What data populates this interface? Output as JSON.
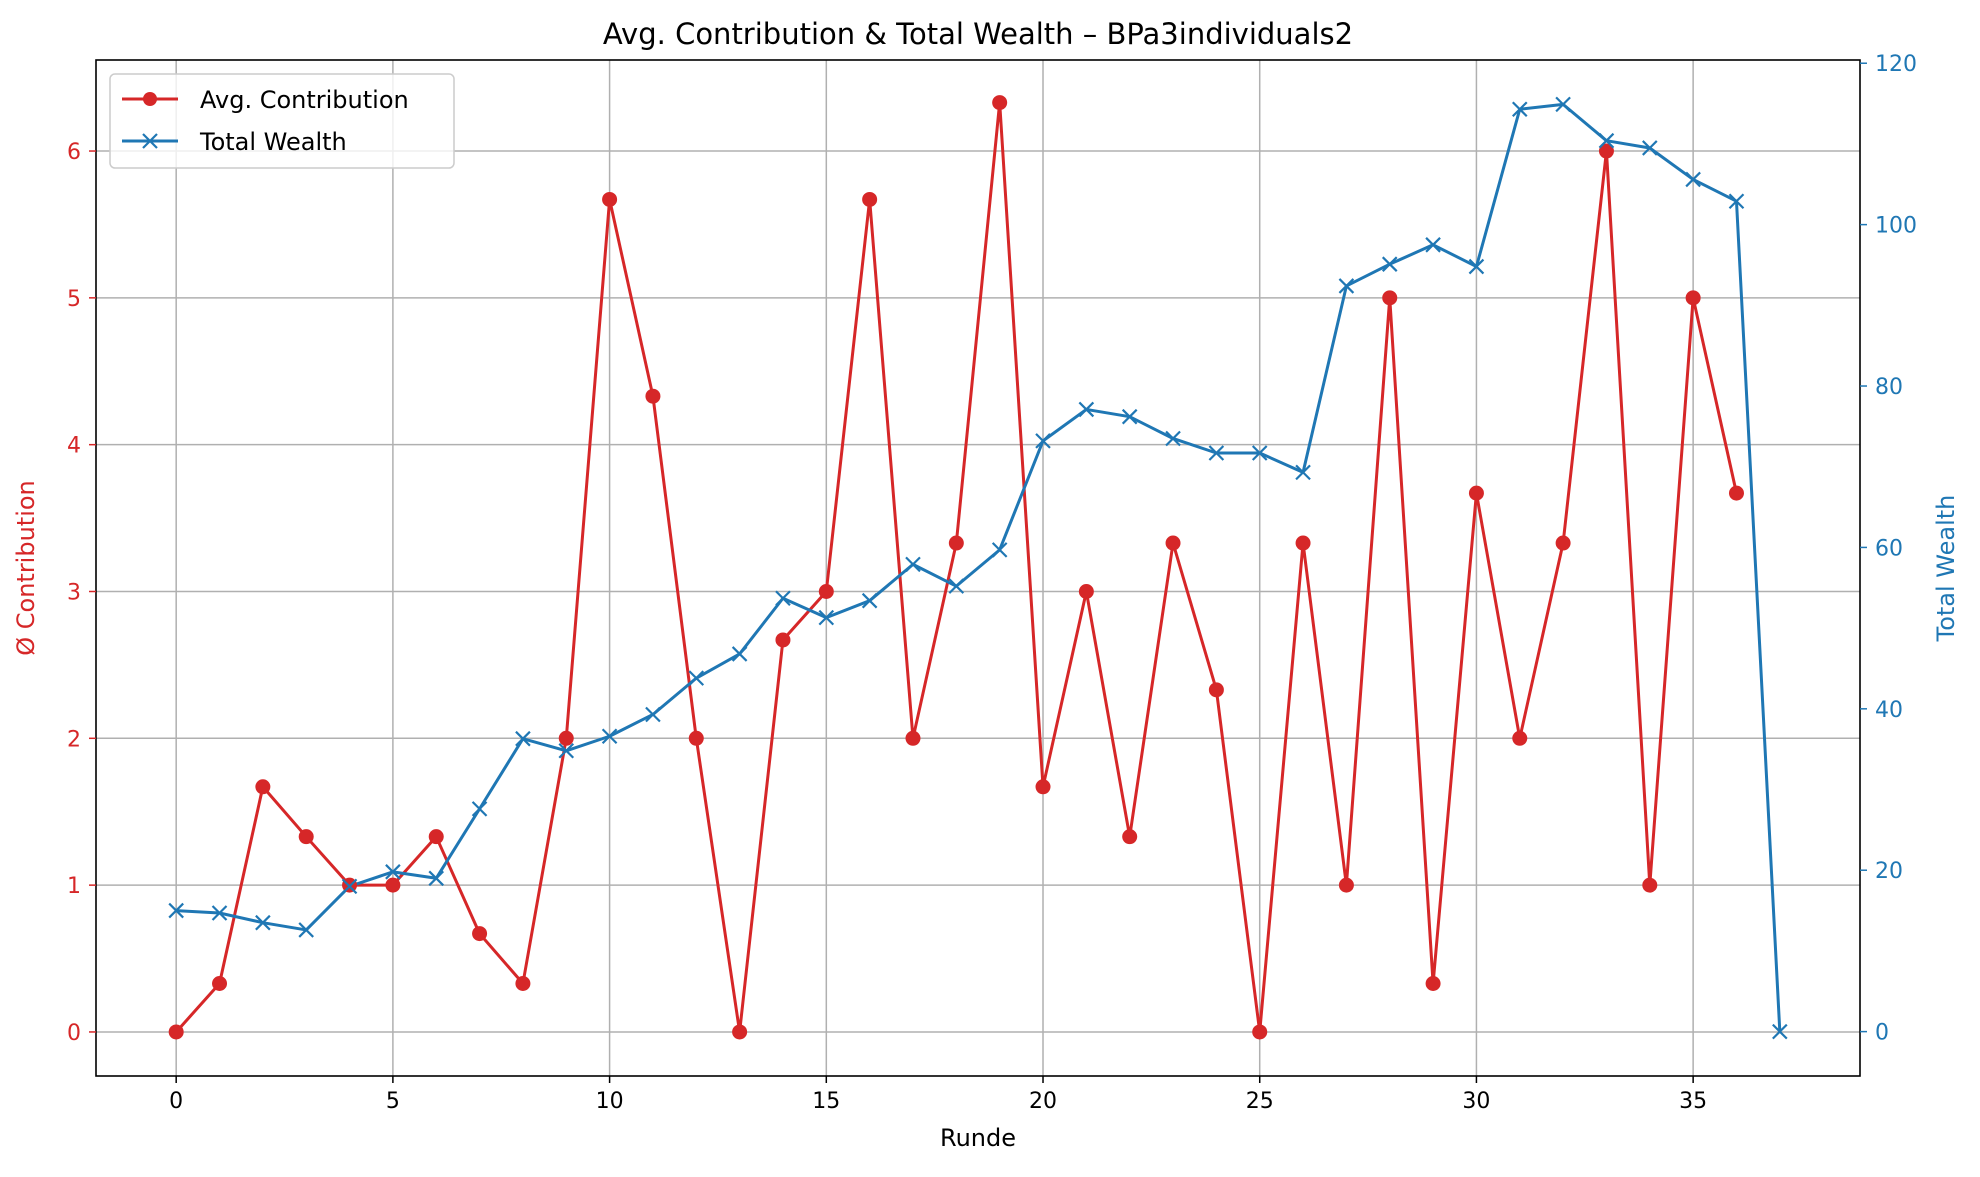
{
  "colors": {
    "contribution": "#d62728",
    "wealth": "#1f77b4",
    "grid": "#b0b0b0",
    "axis": "#000000"
  },
  "chart_data": {
    "type": "line",
    "title": "Avg. Contribution & Total Wealth – BPa3individuals2",
    "xlabel": "Runde",
    "ylabel_left": "Ø Contribution",
    "ylabel_right": "Total Wealth",
    "xlim": [
      -1.85,
      38.85
    ],
    "ylim_left": [
      -0.3,
      6.62
    ],
    "ylim_right": [
      -5.5,
      120.4
    ],
    "x_ticks": [
      0,
      5,
      10,
      15,
      20,
      25,
      30,
      35
    ],
    "y_left_ticks": [
      0,
      1,
      2,
      3,
      4,
      5,
      6
    ],
    "y_right_ticks": [
      0,
      20,
      40,
      60,
      80,
      100,
      120
    ],
    "grid": true,
    "legend_position": "top-left",
    "series": [
      {
        "name": "Avg. Contribution",
        "axis": "left",
        "marker": "circle",
        "x": [
          0,
          1,
          2,
          3,
          4,
          5,
          6,
          7,
          8,
          9,
          10,
          11,
          12,
          13,
          14,
          15,
          16,
          17,
          18,
          19,
          20,
          21,
          22,
          23,
          24,
          25,
          26,
          27,
          28,
          29,
          30,
          31,
          32,
          33,
          34,
          35,
          36
        ],
        "values": [
          0,
          0.33,
          1.67,
          1.33,
          1.0,
          1.0,
          1.33,
          0.67,
          0.33,
          2.0,
          5.67,
          4.33,
          2.0,
          0,
          2.67,
          3.0,
          5.67,
          2.0,
          3.33,
          6.33,
          1.67,
          3.0,
          1.33,
          3.33,
          2.33,
          0,
          3.33,
          1.0,
          5.0,
          0.33,
          3.67,
          2.0,
          3.33,
          6.0,
          1.0,
          5.0,
          3.67
        ]
      },
      {
        "name": "Total Wealth",
        "axis": "right",
        "marker": "x",
        "x": [
          0,
          1,
          2,
          3,
          4,
          5,
          6,
          7,
          8,
          9,
          10,
          11,
          12,
          13,
          14,
          15,
          16,
          17,
          18,
          19,
          20,
          21,
          22,
          23,
          24,
          25,
          26,
          27,
          28,
          29,
          30,
          31,
          32,
          33,
          34,
          35,
          36,
          37
        ],
        "values": [
          15.0,
          14.7,
          13.5,
          12.6,
          18.0,
          19.8,
          19.0,
          27.6,
          36.3,
          34.8,
          36.6,
          39.3,
          43.8,
          46.8,
          53.7,
          51.3,
          53.4,
          57.9,
          55.2,
          59.7,
          73.2,
          77.1,
          76.2,
          73.5,
          71.7,
          71.7,
          69.3,
          92.4,
          95.1,
          97.5,
          94.8,
          114.3,
          114.9,
          110.4,
          109.5,
          105.6,
          102.9,
          0
        ]
      }
    ]
  }
}
